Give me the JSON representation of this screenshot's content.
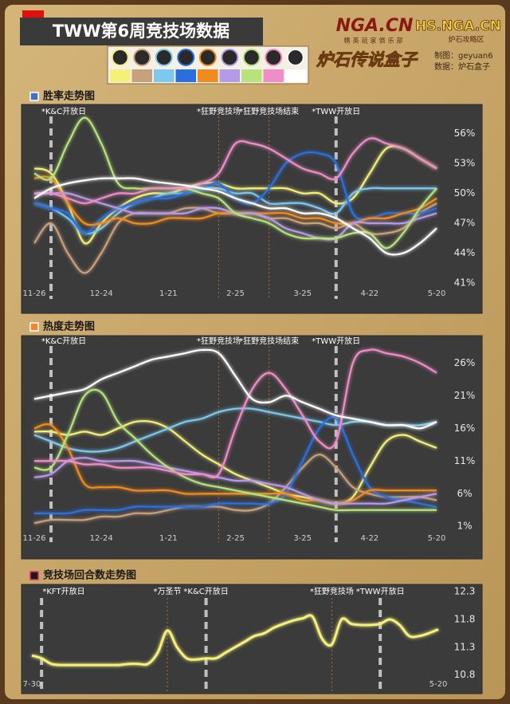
{
  "header": {
    "title": "TWW第6周竞技场数据",
    "logo_main": "NGA.CN",
    "logo_sub": "精英玩家俱乐部",
    "logo_hs": "HS.NGA.CN",
    "logo_hs_sub": "炉石攻略区",
    "logo_box": "炉石传说盒子",
    "credits": [
      "制图：geyuan6",
      "数据：炉石盒子"
    ]
  },
  "chart_data": [
    {
      "type": "line",
      "title": "胜率走势图",
      "categories": [
        "11-26",
        null,
        null,
        null,
        "12-24",
        null,
        null,
        null,
        "1-21",
        null,
        null,
        null,
        "2-25",
        null,
        null,
        null,
        "3-25",
        null,
        null,
        null,
        "4-22",
        null,
        null,
        null,
        "5-20"
      ],
      "ylim": [
        39.8,
        58.2
      ],
      "yticks": [
        {
          "value": 41,
          "label": "41%"
        },
        {
          "value": 44,
          "label": "44%"
        },
        {
          "value": 47,
          "label": "47%"
        },
        {
          "value": 50,
          "label": "50%"
        },
        {
          "value": 53,
          "label": "53%"
        },
        {
          "value": 56,
          "label": "56%"
        }
      ],
      "annotations": [
        {
          "text": "*K&C开放日",
          "index": 1,
          "style": "thick"
        },
        {
          "text": "*狂野竞技场",
          "index": 11,
          "style": "thin"
        },
        {
          "text": "*狂野竞技场结束",
          "index": 14,
          "style": "thin"
        },
        {
          "text": "*TWW开放日",
          "index": 18,
          "style": "thick"
        }
      ],
      "series": [
        {
          "color": "#f5f07a",
          "values": [
            52.5,
            52,
            49,
            45,
            47,
            48.5,
            49.5,
            50,
            50,
            50.5,
            51,
            51,
            50.5,
            50.5,
            50.5,
            50.5,
            50,
            50,
            49,
            49.5,
            52,
            54.5,
            54.5,
            53.5,
            52.5
          ]
        },
        {
          "color": "#c8a07c",
          "values": [
            45,
            47,
            44,
            42,
            44,
            47,
            48,
            48,
            48,
            48.5,
            48.5,
            48,
            48,
            48,
            47.5,
            47.5,
            47,
            47,
            46.5,
            47,
            46,
            46,
            46.5,
            48,
            49
          ]
        },
        {
          "color": "#7cc8ee",
          "values": [
            49,
            48.5,
            47.5,
            46,
            46.5,
            48,
            49,
            49.5,
            50,
            50,
            50.5,
            50.5,
            50,
            50,
            49,
            49,
            49,
            48.5,
            48,
            50,
            50.5,
            50.5,
            50.5,
            50.5,
            50.5
          ]
        },
        {
          "color": "#2a6fe0",
          "values": [
            49,
            48.5,
            48,
            46,
            47.5,
            48.5,
            49,
            49.5,
            49.5,
            50,
            50.5,
            51,
            49.5,
            49,
            50.5,
            53,
            54,
            54,
            53,
            48,
            47.5,
            48,
            48,
            48,
            48.5
          ]
        },
        {
          "color": "#f28a1e",
          "values": [
            51.5,
            51.5,
            49,
            47,
            47,
            47.5,
            47,
            47,
            47.5,
            47.5,
            47.5,
            48,
            48,
            48,
            48,
            48,
            47.5,
            47.5,
            47,
            47,
            47.5,
            47.5,
            48,
            48.5,
            49.5
          ]
        },
        {
          "color": "#b59ae8",
          "values": [
            50,
            50,
            50,
            49.5,
            49,
            48.5,
            48,
            48,
            48,
            48,
            48.5,
            48.5,
            48,
            48,
            47.5,
            46.5,
            46,
            45.5,
            45.5,
            47,
            47,
            47,
            47,
            47.5,
            48
          ]
        },
        {
          "color": "#b6e37a",
          "values": [
            52,
            51.5,
            55,
            57.6,
            55,
            51,
            50.5,
            50.5,
            50.5,
            50.5,
            50,
            49.5,
            48,
            47.5,
            47,
            46,
            45.5,
            45.5,
            45.5,
            46,
            46,
            44.5,
            46,
            48.5,
            50.5
          ]
        },
        {
          "color": "#f08cc8",
          "values": [
            50,
            50,
            49.5,
            49,
            49.5,
            50,
            50,
            50.5,
            50.5,
            50.5,
            51,
            52,
            55,
            55,
            54.5,
            53.5,
            52.5,
            52,
            51.5,
            54,
            55.5,
            55,
            54.5,
            53.5,
            52.5
          ]
        },
        {
          "color": "#ffffff",
          "values": [
            49.5,
            50.5,
            51,
            51.3,
            51.5,
            51.5,
            51.5,
            51.2,
            51,
            50.8,
            50.5,
            50.2,
            49.5,
            49,
            48.5,
            48.5,
            48,
            48,
            47.5,
            46.5,
            45.5,
            44,
            44,
            45,
            46.5
          ]
        }
      ]
    },
    {
      "type": "line",
      "title": "热度走势图",
      "categories": [
        "11-26",
        null,
        null,
        null,
        "12-24",
        null,
        null,
        null,
        "1-21",
        null,
        null,
        null,
        "2-25",
        null,
        null,
        null,
        "3-25",
        null,
        null,
        null,
        "4-22",
        null,
        null,
        null,
        "5-20"
      ],
      "ylim": [
        -0.8,
        29.7
      ],
      "yticks": [
        {
          "value": 1,
          "label": "1%"
        },
        {
          "value": 6,
          "label": "6%"
        },
        {
          "value": 11,
          "label": "11%"
        },
        {
          "value": 16,
          "label": "16%"
        },
        {
          "value": 21,
          "label": "21%"
        },
        {
          "value": 26,
          "label": "26%"
        }
      ],
      "annotations": [
        {
          "text": "*K&C开放日",
          "index": 1,
          "style": "thick"
        },
        {
          "text": "*狂野竞技场",
          "index": 11,
          "style": "thin"
        },
        {
          "text": "*狂野竞技场结束",
          "index": 14,
          "style": "thin"
        },
        {
          "text": "*TWW开放日",
          "index": 18,
          "style": "thick"
        }
      ],
      "series": [
        {
          "color": "#f5f07a",
          "values": [
            15.5,
            15.5,
            15,
            15.5,
            15,
            16,
            17,
            17,
            16,
            14,
            12,
            10.5,
            9,
            8,
            7,
            6,
            5.5,
            5,
            4.5,
            5.5,
            10,
            14,
            15,
            14,
            13
          ]
        },
        {
          "color": "#c8a07c",
          "values": [
            1.5,
            2,
            2,
            2,
            2.5,
            2.5,
            3,
            3,
            3.5,
            4,
            4,
            4,
            3.5,
            3.5,
            4.5,
            7,
            10,
            12,
            10,
            7,
            6,
            5.5,
            5.5,
            5.5,
            5
          ]
        },
        {
          "color": "#7cc8ee",
          "values": [
            15,
            14,
            13,
            12.5,
            12.5,
            13,
            14,
            15,
            16,
            17,
            17.5,
            18.5,
            19,
            19,
            18.5,
            18,
            17.5,
            17,
            16.5,
            17,
            17,
            16.5,
            16.5,
            16.5,
            17
          ]
        },
        {
          "color": "#2a6fe0",
          "values": [
            3,
            3,
            3,
            3.5,
            3.5,
            3.5,
            4,
            4,
            4,
            4,
            4,
            4.5,
            4.5,
            4.5,
            4.5,
            6,
            11,
            16,
            17.5,
            12,
            7,
            5.5,
            5,
            4.5,
            4
          ]
        },
        {
          "color": "#f28a1e",
          "values": [
            16,
            16.5,
            13,
            7.5,
            7,
            7,
            6.5,
            6.5,
            6.5,
            6,
            6,
            6,
            6,
            6,
            6,
            6,
            5,
            5,
            4.5,
            5,
            6.5,
            6.5,
            6.5,
            6.5,
            6.5
          ]
        },
        {
          "color": "#b59ae8",
          "values": [
            8.5,
            9,
            11,
            11.5,
            11,
            11,
            11,
            10.5,
            10,
            9.5,
            9,
            8.5,
            8,
            8,
            7.5,
            7,
            6,
            5,
            4.5,
            4.5,
            4.5,
            4.5,
            5,
            5.5,
            6
          ]
        },
        {
          "color": "#b6e37a",
          "values": [
            10,
            10,
            15,
            21,
            21.5,
            17,
            14.5,
            12,
            10,
            8.5,
            7.5,
            7,
            6.5,
            6,
            5.5,
            5,
            4.5,
            4,
            3.5,
            3.5,
            3.5,
            3.5,
            3.5,
            3.5,
            3.5
          ]
        },
        {
          "color": "#f08cc8",
          "values": [
            11,
            11,
            11,
            10.5,
            10.5,
            10,
            10,
            10,
            9.5,
            9,
            9,
            9,
            16,
            22,
            24.5,
            22,
            18,
            14,
            14,
            26,
            28,
            27.5,
            27,
            26,
            24.5
          ]
        },
        {
          "color": "#ffffff",
          "values": [
            20.5,
            21,
            21.5,
            22,
            23.5,
            24.5,
            25.5,
            26.5,
            27,
            27.5,
            28,
            27.5,
            24,
            20.5,
            20,
            21,
            20,
            19,
            18,
            17.5,
            17,
            16.5,
            16.5,
            16,
            17
          ]
        }
      ]
    },
    {
      "type": "line",
      "title": "竞技场回合数走势图",
      "categories": [
        "7-30",
        null,
        null,
        null,
        null,
        null,
        null,
        null,
        null,
        null,
        null,
        null,
        null,
        null,
        null,
        null,
        null,
        null,
        null,
        null,
        null,
        null,
        null,
        null,
        null,
        null,
        null,
        null,
        null,
        null,
        null,
        null,
        null,
        null,
        null,
        null,
        null,
        null,
        null,
        null,
        null,
        null,
        "5-20"
      ],
      "ylim": [
        10.58,
        12.4
      ],
      "yticks": [
        10.8,
        11.3,
        11.8,
        12.3
      ],
      "annotations": [
        {
          "text": "*KFT开放日",
          "index": 1,
          "style": "thick"
        },
        {
          "text": "*万圣节",
          "index": 14,
          "style": "thin"
        },
        {
          "text": "*K&C开放日",
          "index": 18,
          "style": "thick"
        },
        {
          "text": "*狂野竞技场",
          "index": 31,
          "style": "thin"
        },
        {
          "text": "*TWW开放日",
          "index": 36,
          "style": "thick"
        }
      ],
      "series": [
        {
          "color": "#f5f07a",
          "values": [
            11.15,
            11.1,
            11.0,
            10.98,
            10.98,
            10.98,
            10.98,
            10.98,
            10.98,
            10.98,
            11.0,
            11.0,
            11.0,
            11.2,
            11.6,
            11.3,
            11.1,
            11.08,
            11.1,
            11.1,
            11.2,
            11.3,
            11.4,
            11.5,
            11.55,
            11.65,
            11.72,
            11.78,
            11.82,
            11.85,
            11.45,
            11.35,
            11.8,
            11.72,
            11.7,
            11.7,
            11.72,
            11.8,
            11.7,
            11.5,
            11.5,
            11.55,
            11.62
          ]
        }
      ]
    }
  ]
}
